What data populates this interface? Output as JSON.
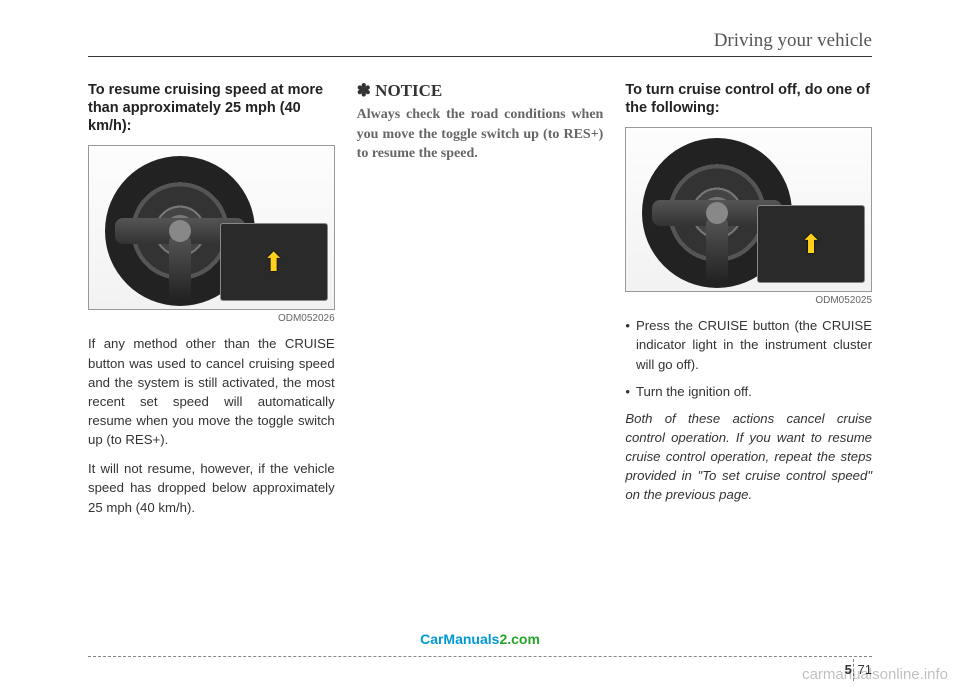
{
  "header": {
    "section_title": "Driving your vehicle"
  },
  "col1": {
    "heading": "To resume cruising speed at more than approximately 25 mph (40 km/h):",
    "figcode": "ODM052026",
    "p1": "If any method other than the CRUISE button was used to cancel cruising speed and the system is still activated, the most recent set speed will automatically resume when you move the toggle switch up (to RES+).",
    "p2": "It will not resume, however, if the vehicle speed has dropped below approximately 25 mph (40 km/h)."
  },
  "col2": {
    "notice_symbol": "✽",
    "notice_label": "NOTICE",
    "notice_body": "Always check the road conditions when you move the toggle switch up (to RES+) to resume the speed."
  },
  "col3": {
    "heading": "To turn cruise control off, do one of the following:",
    "figcode": "ODM052025",
    "b1": "Press the CRUISE button (the CRUISE indicator light in the instrument cluster will go off).",
    "b2": "Turn the ignition off.",
    "italic": "Both of these actions cancel cruise control operation. If you want to resume cruise control operation, repeat the steps provided in \"To set cruise control speed\" on the previous page."
  },
  "footer": {
    "watermark_a": "CarManuals",
    "watermark_b": "2.com",
    "section_num": "5",
    "page_num": "71",
    "site_watermark": "carmanualsonline.info"
  },
  "colors": {
    "link_blue": "#0099d6",
    "link_green": "#28a428",
    "arrow_yellow": "#ffcf1a"
  }
}
